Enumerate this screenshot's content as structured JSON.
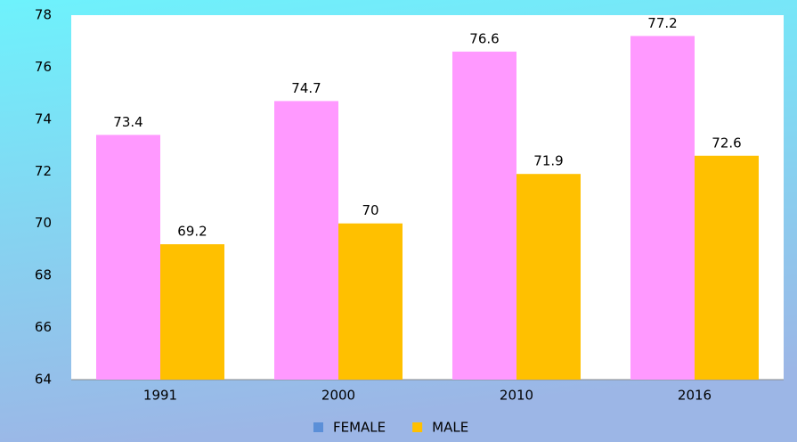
{
  "chart_data": {
    "type": "bar",
    "categories": [
      "1991",
      "2000",
      "2010",
      "2016"
    ],
    "series": [
      {
        "name": "FEMALE",
        "color": "#ff99ff",
        "legend_color": "#5b8fd8",
        "values": [
          73.4,
          74.7,
          76.6,
          77.2
        ]
      },
      {
        "name": "MALE",
        "color": "#ffc000",
        "legend_color": "#ffc000",
        "values": [
          69.2,
          70,
          71.9,
          72.6
        ]
      }
    ],
    "ylim": [
      64,
      78
    ],
    "yticks": [
      64,
      66,
      68,
      70,
      72,
      74,
      76,
      78
    ],
    "grid": false,
    "legend": "bottom"
  }
}
